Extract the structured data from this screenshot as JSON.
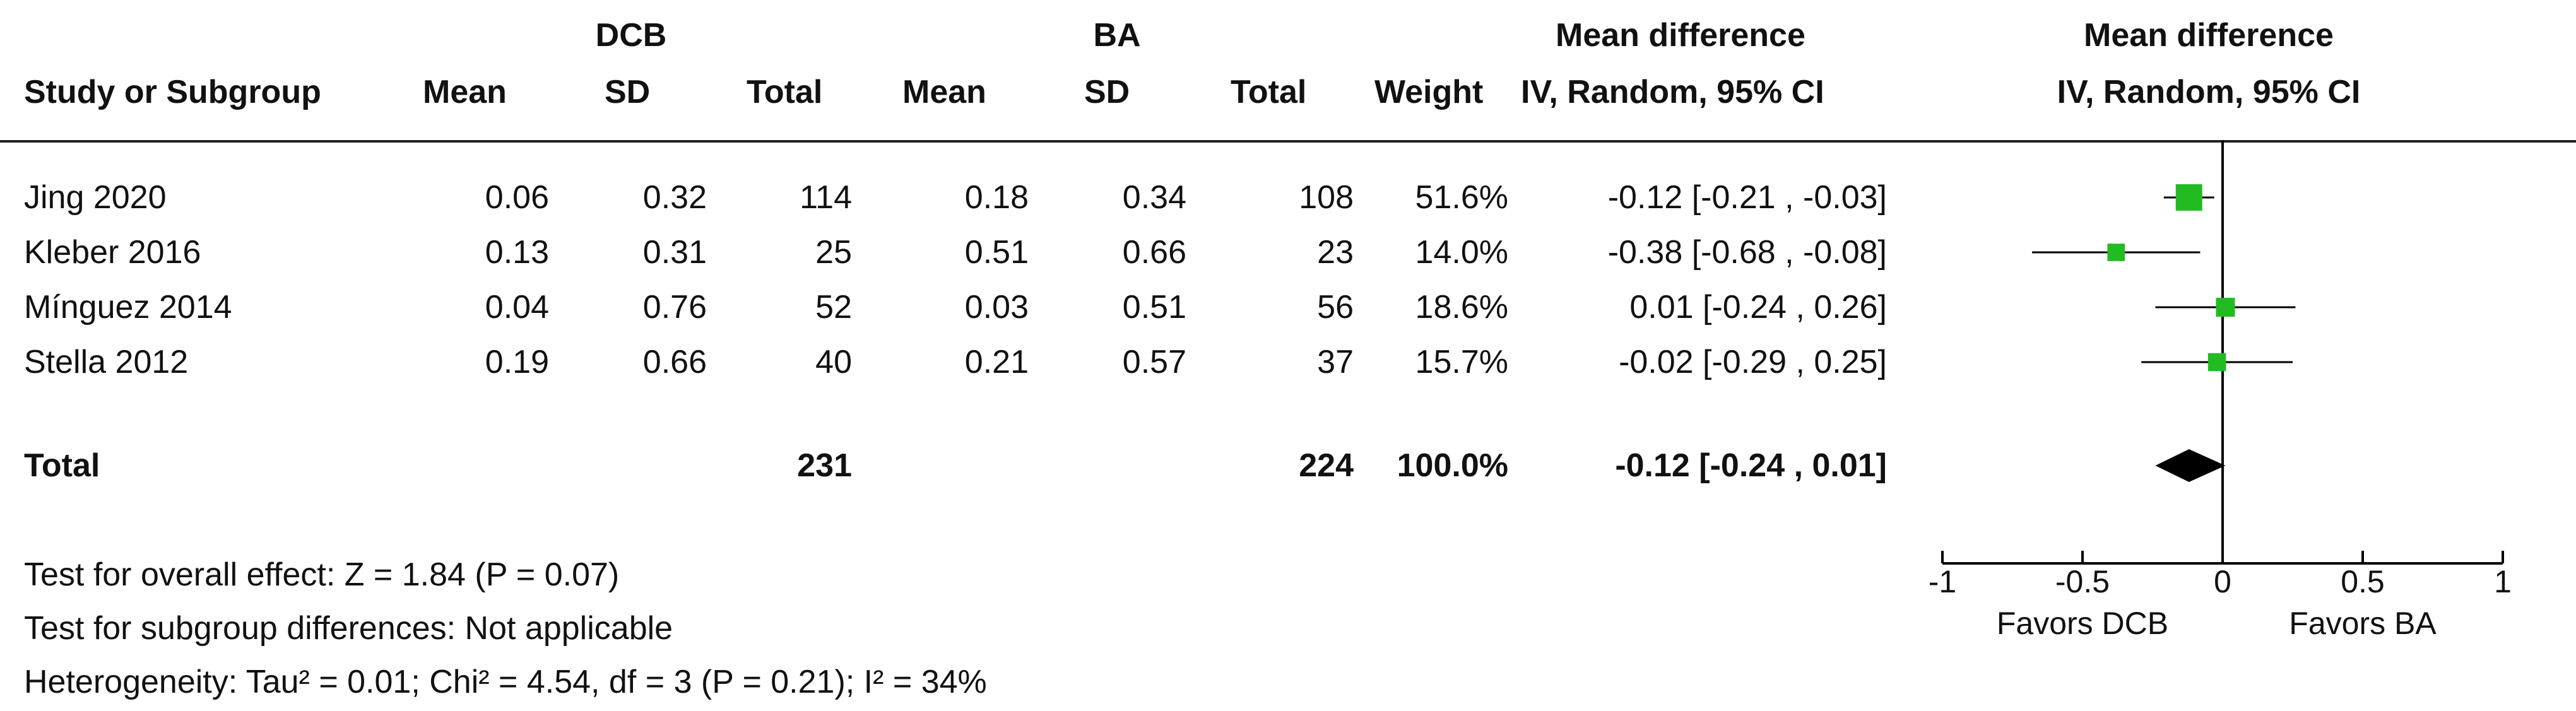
{
  "headers": {
    "group1": "DCB",
    "group2": "BA",
    "study": "Study or Subgroup",
    "mean1": "Mean",
    "sd1": "SD",
    "total1": "Total",
    "mean2": "Mean",
    "sd2": "SD",
    "total2": "Total",
    "weight": "Weight",
    "md_title": "Mean difference",
    "md_method": "IV, Random, 95% CI",
    "plot_title": "Mean difference",
    "plot_method": "IV, Random, 95% CI"
  },
  "studies": [
    {
      "name": "Jing 2020",
      "mean1": "0.06",
      "sd1": "0.32",
      "total1": "114",
      "mean2": "0.18",
      "sd2": "0.34",
      "total2": "108",
      "weight": "51.6%",
      "ci_text": "-0.12 [-0.21 , -0.03]"
    },
    {
      "name": "Kleber 2016",
      "mean1": "0.13",
      "sd1": "0.31",
      "total1": "25",
      "mean2": "0.51",
      "sd2": "0.66",
      "total2": "23",
      "weight": "14.0%",
      "ci_text": "-0.38 [-0.68 , -0.08]"
    },
    {
      "name": "Mínguez 2014",
      "mean1": "0.04",
      "sd1": "0.76",
      "total1": "52",
      "mean2": "0.03",
      "sd2": "0.51",
      "total2": "56",
      "weight": "18.6%",
      "ci_text": "0.01 [-0.24 , 0.26]"
    },
    {
      "name": "Stella 2012",
      "mean1": "0.19",
      "sd1": "0.66",
      "total1": "40",
      "mean2": "0.21",
      "sd2": "0.57",
      "total2": "37",
      "weight": "15.7%",
      "ci_text": "-0.02 [-0.29 , 0.25]"
    }
  ],
  "total": {
    "label": "Total",
    "total1": "231",
    "total2": "224",
    "weight": "100.0%",
    "ci_text": "-0.12 [-0.24 , 0.01]"
  },
  "footnotes": {
    "overall": "Test for overall effect: Z = 1.84 (P = 0.07)",
    "subgroup": "Test for subgroup differences: Not applicable",
    "heterogeneity": "Heterogeneity: Tau² = 0.01; Chi² = 4.54, df = 3 (P = 0.21); I² = 34%"
  },
  "chart_data": {
    "type": "forest",
    "series": [
      {
        "study": "Jing 2020",
        "estimate": -0.12,
        "lower": -0.21,
        "upper": -0.03,
        "weight": 51.6
      },
      {
        "study": "Kleber 2016",
        "estimate": -0.38,
        "lower": -0.68,
        "upper": -0.08,
        "weight": 14.0
      },
      {
        "study": "Mínguez 2014",
        "estimate": 0.01,
        "lower": -0.24,
        "upper": 0.26,
        "weight": 18.6
      },
      {
        "study": "Stella 2012",
        "estimate": -0.02,
        "lower": -0.29,
        "upper": 0.25,
        "weight": 15.7
      }
    ],
    "pooled": {
      "estimate": -0.12,
      "lower": -0.24,
      "upper": 0.01
    },
    "xlim": [
      -1,
      1
    ],
    "ticks": [
      -1,
      -0.5,
      0,
      0.5,
      1
    ],
    "tick_labels": [
      "-1",
      "-0.5",
      "0",
      "0.5",
      "1"
    ],
    "favors_left": "Favors DCB",
    "favors_right": "Favors BA",
    "colors": {
      "marker": "#22bb22",
      "diamond": "#000000",
      "line": "#000000"
    }
  }
}
